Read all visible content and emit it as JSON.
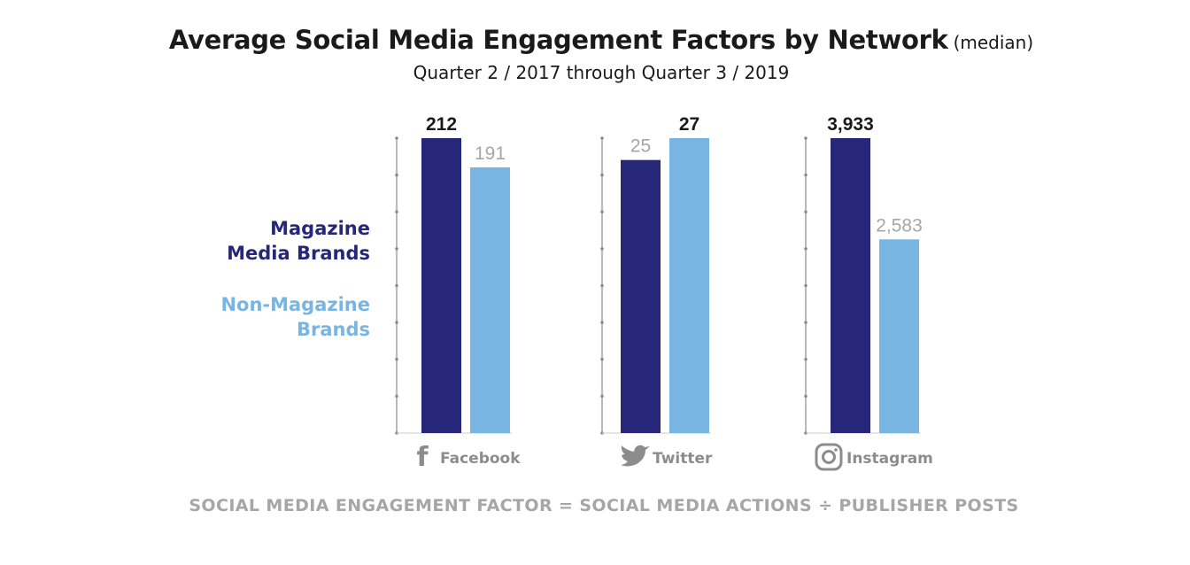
{
  "colors": {
    "magazine": "#27277a",
    "non_magazine": "#79b5e3",
    "axis": "#8c8c8c",
    "footer": "#a6a6a6"
  },
  "title": "Average Social Media Engagement Factors by Network",
  "title_suffix": "(median)",
  "subtitle": "Quarter 2 / 2017 through Quarter 3 / 2019",
  "legend": [
    {
      "line1": "Magazine",
      "line2": "Media Brands",
      "color": "#27277a"
    },
    {
      "line1": "Non-Magazine",
      "line2": "Brands",
      "color": "#79b5e3"
    }
  ],
  "footer": "SOCIAL MEDIA ENGAGEMENT FACTOR = SOCIAL MEDIA ACTIONS ÷ PUBLISHER POSTS",
  "chart_data": [
    {
      "type": "bar",
      "network": "Facebook",
      "icon": "facebook-icon",
      "categories": [
        "Magazine Media Brands",
        "Non-Magazine Brands"
      ],
      "values": [
        212,
        191
      ],
      "labels": [
        "212",
        "191"
      ],
      "ylim": [
        0,
        212
      ]
    },
    {
      "type": "bar",
      "network": "Twitter",
      "icon": "twitter-icon",
      "categories": [
        "Magazine Media Brands",
        "Non-Magazine Brands"
      ],
      "values": [
        25,
        27
      ],
      "labels": [
        "25",
        "27"
      ],
      "ylim": [
        0,
        27
      ]
    },
    {
      "type": "bar",
      "network": "Instagram",
      "icon": "instagram-icon",
      "categories": [
        "Magazine Media Brands",
        "Non-Magazine Brands"
      ],
      "values": [
        3933,
        2583
      ],
      "labels": [
        "3,933",
        "2,583"
      ],
      "ylim": [
        0,
        3933
      ]
    }
  ]
}
